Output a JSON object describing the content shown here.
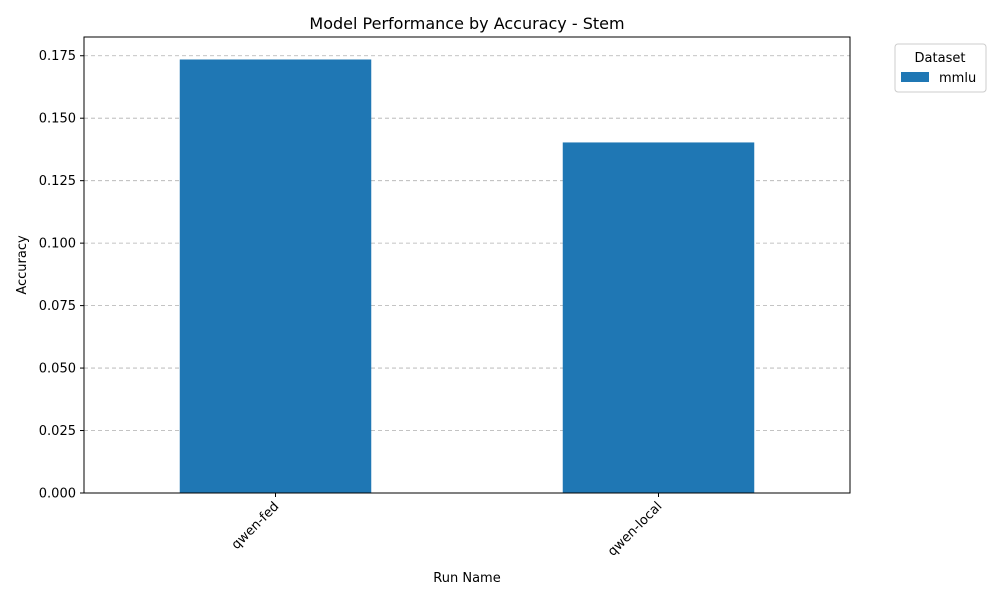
{
  "chart_data": {
    "type": "bar",
    "title": "Model Performance by Accuracy - Stem",
    "xlabel": "Run Name",
    "ylabel": "Accuracy",
    "categories": [
      "qwen-fed",
      "qwen-local"
    ],
    "series": [
      {
        "name": "mmlu",
        "values": [
          0.1735,
          0.1403
        ],
        "color": "#1f77b4"
      }
    ],
    "ylim": [
      0,
      0.1825
    ],
    "yticks": [
      0.0,
      0.025,
      0.05,
      0.075,
      0.1,
      0.125,
      0.15,
      0.175
    ],
    "ytick_labels": [
      "0.000",
      "0.025",
      "0.050",
      "0.075",
      "0.100",
      "0.125",
      "0.150",
      "0.175"
    ],
    "grid": "y, dashed",
    "legend": {
      "title": "Dataset",
      "placement": "outside-top-right"
    },
    "xtick_rotation_deg": 45
  }
}
